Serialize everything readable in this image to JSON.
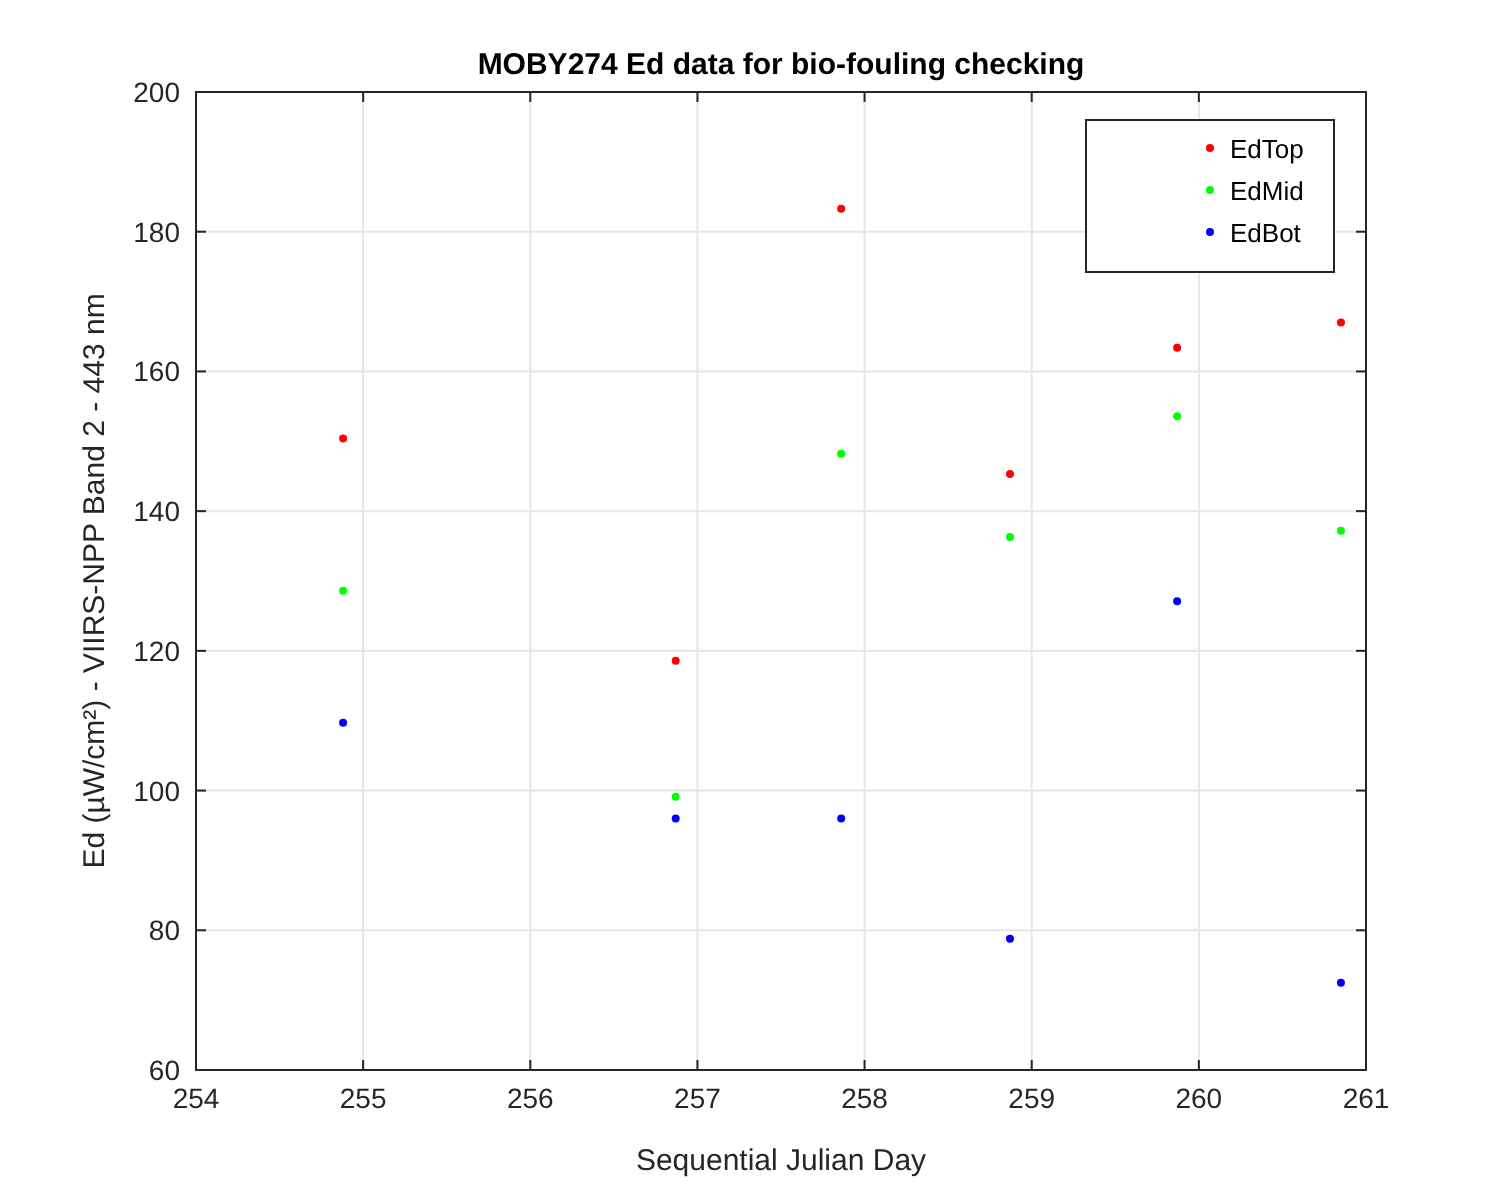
{
  "chart_data": {
    "type": "scatter",
    "title": "MOBY274 Ed data for bio-fouling checking",
    "xlabel": "Sequential Julian Day",
    "ylabel": "Ed (µW/cm²) - VIIRS-NPP Band 2 - 443 nm",
    "x": [
      254.88,
      256.87,
      257.86,
      258.87,
      259.87,
      260.85
    ],
    "series": [
      {
        "name": "EdTop",
        "color": "#ff0000",
        "values": [
          150.4,
          118.6,
          183.3,
          145.3,
          163.4,
          167
        ]
      },
      {
        "name": "EdMid",
        "color": "#00ff00",
        "values": [
          128.6,
          99.1,
          148.2,
          136.3,
          153.6,
          137.2
        ]
      },
      {
        "name": "EdBot",
        "color": "#0000ff",
        "values": [
          109.7,
          96,
          96,
          78.8,
          127.1,
          72.5
        ]
      }
    ],
    "xlim": [
      254,
      261
    ],
    "xticks": [
      254,
      255,
      256,
      257,
      258,
      259,
      260,
      261
    ],
    "ylim": [
      60,
      200
    ],
    "yticks": [
      60,
      80,
      100,
      120,
      140,
      160,
      180,
      200
    ],
    "grid": true,
    "legend": "top right",
    "marker": "circle"
  }
}
